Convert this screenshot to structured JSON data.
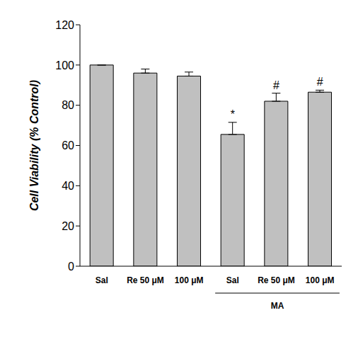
{
  "chart_data": {
    "type": "bar",
    "y_label": "Cell Viability (% Control)",
    "categories": [
      "Sal",
      "Re 50 μM",
      "100 μM",
      "Sal",
      "Re 50 μM",
      "100 μM"
    ],
    "group_labels": [
      null,
      null,
      null,
      "MA",
      "MA",
      "MA"
    ],
    "values": [
      100,
      96,
      94.5,
      65.5,
      82,
      86.5
    ],
    "errors": [
      0,
      2,
      2,
      6,
      4,
      1
    ],
    "annotations": [
      null,
      null,
      null,
      "*",
      "#",
      "#"
    ],
    "color": "#c0c0c0",
    "ylim": [
      0,
      120
    ],
    "yticks": [
      0,
      20,
      40,
      60,
      80,
      100,
      120
    ],
    "grid": false
  }
}
